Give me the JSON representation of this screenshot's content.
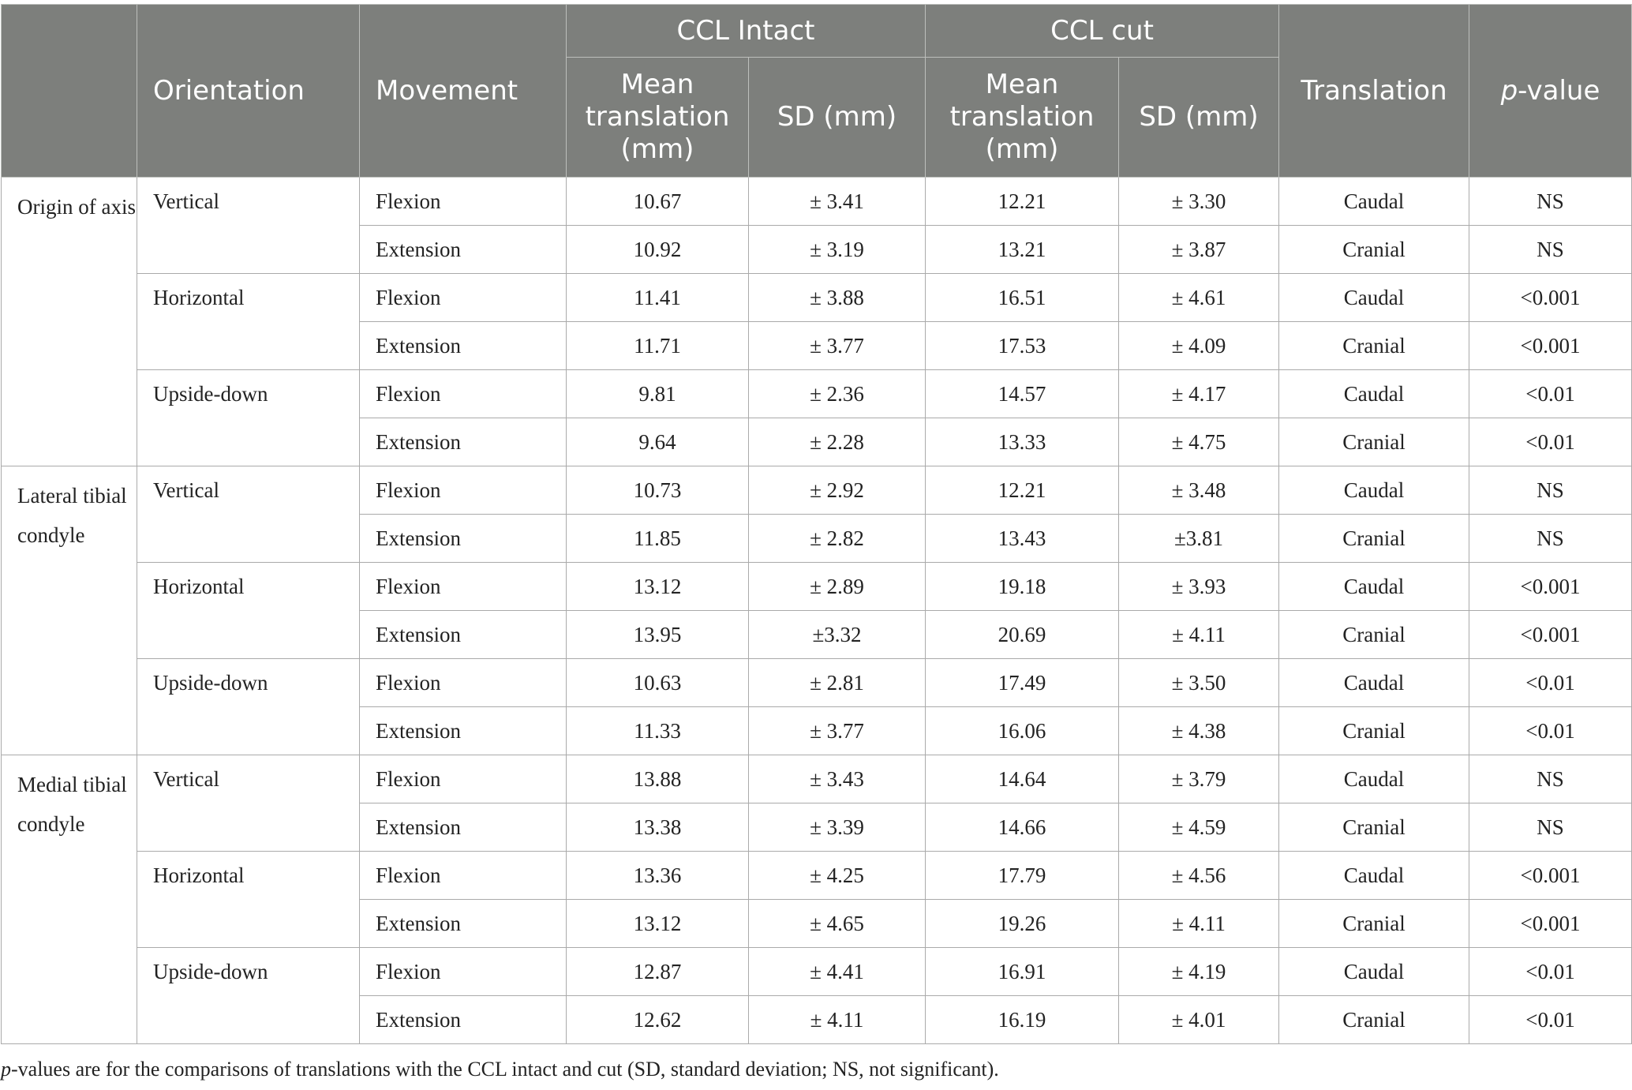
{
  "header": {
    "orientation": "Orientation",
    "movement": "Movement",
    "group_intact": "CCL Intact",
    "group_cut": "CCL cut",
    "mean_line1": "Mean",
    "mean_line2": "translation",
    "mean_line3": "(mm)",
    "sd": "SD (mm)",
    "translation": "Translation",
    "pvalue_italic": "p",
    "pvalue_rest": "-value"
  },
  "groups": [
    {
      "origin": "Origin of axis",
      "orientations": [
        {
          "name": "Vertical",
          "rows": [
            {
              "movement": "Flexion",
              "intact_mean": "10.67",
              "intact_sd": "± 3.41",
              "cut_mean": "12.21",
              "cut_sd": "± 3.30",
              "translation": "Caudal",
              "p": "NS"
            },
            {
              "movement": "Extension",
              "intact_mean": "10.92",
              "intact_sd": "± 3.19",
              "cut_mean": "13.21",
              "cut_sd": "± 3.87",
              "translation": "Cranial",
              "p": "NS"
            }
          ]
        },
        {
          "name": "Horizontal",
          "rows": [
            {
              "movement": "Flexion",
              "intact_mean": "11.41",
              "intact_sd": "± 3.88",
              "cut_mean": "16.51",
              "cut_sd": "± 4.61",
              "translation": "Caudal",
              "p": "<0.001"
            },
            {
              "movement": "Extension",
              "intact_mean": "11.71",
              "intact_sd": "± 3.77",
              "cut_mean": "17.53",
              "cut_sd": "± 4.09",
              "translation": "Cranial",
              "p": "<0.001"
            }
          ]
        },
        {
          "name": "Upside-down",
          "rows": [
            {
              "movement": "Flexion",
              "intact_mean": "9.81",
              "intact_sd": "± 2.36",
              "cut_mean": "14.57",
              "cut_sd": "± 4.17",
              "translation": "Caudal",
              "p": "<0.01"
            },
            {
              "movement": "Extension",
              "intact_mean": "9.64",
              "intact_sd": "± 2.28",
              "cut_mean": "13.33",
              "cut_sd": "± 4.75",
              "translation": "Cranial",
              "p": "<0.01"
            }
          ]
        }
      ]
    },
    {
      "origin": "Lateral tibial condyle",
      "orientations": [
        {
          "name": "Vertical",
          "rows": [
            {
              "movement": "Flexion",
              "intact_mean": "10.73",
              "intact_sd": "± 2.92",
              "cut_mean": "12.21",
              "cut_sd": "± 3.48",
              "translation": "Caudal",
              "p": "NS"
            },
            {
              "movement": "Extension",
              "intact_mean": "11.85",
              "intact_sd": "± 2.82",
              "cut_mean": "13.43",
              "cut_sd": "±3.81",
              "translation": "Cranial",
              "p": "NS"
            }
          ]
        },
        {
          "name": "Horizontal",
          "rows": [
            {
              "movement": "Flexion",
              "intact_mean": "13.12",
              "intact_sd": "± 2.89",
              "cut_mean": "19.18",
              "cut_sd": "± 3.93",
              "translation": "Caudal",
              "p": "<0.001"
            },
            {
              "movement": "Extension",
              "intact_mean": "13.95",
              "intact_sd": "±3.32",
              "cut_mean": "20.69",
              "cut_sd": "± 4.11",
              "translation": "Cranial",
              "p": "<0.001"
            }
          ]
        },
        {
          "name": "Upside-down",
          "rows": [
            {
              "movement": "Flexion",
              "intact_mean": "10.63",
              "intact_sd": "± 2.81",
              "cut_mean": "17.49",
              "cut_sd": "± 3.50",
              "translation": "Caudal",
              "p": "<0.01"
            },
            {
              "movement": "Extension",
              "intact_mean": "11.33",
              "intact_sd": "± 3.77",
              "cut_mean": "16.06",
              "cut_sd": "± 4.38",
              "translation": "Cranial",
              "p": "<0.01"
            }
          ]
        }
      ]
    },
    {
      "origin": "Medial tibial condyle",
      "orientations": [
        {
          "name": "Vertical",
          "rows": [
            {
              "movement": "Flexion",
              "intact_mean": "13.88",
              "intact_sd": "± 3.43",
              "cut_mean": "14.64",
              "cut_sd": "± 3.79",
              "translation": "Caudal",
              "p": "NS"
            },
            {
              "movement": "Extension",
              "intact_mean": "13.38",
              "intact_sd": "± 3.39",
              "cut_mean": "14.66",
              "cut_sd": "± 4.59",
              "translation": "Cranial",
              "p": "NS"
            }
          ]
        },
        {
          "name": "Horizontal",
          "rows": [
            {
              "movement": "Flexion",
              "intact_mean": "13.36",
              "intact_sd": "± 4.25",
              "cut_mean": "17.79",
              "cut_sd": "± 4.56",
              "translation": "Caudal",
              "p": "<0.001"
            },
            {
              "movement": "Extension",
              "intact_mean": "13.12",
              "intact_sd": "± 4.65",
              "cut_mean": "19.26",
              "cut_sd": "± 4.11",
              "translation": "Cranial",
              "p": "<0.001"
            }
          ]
        },
        {
          "name": "Upside-down",
          "rows": [
            {
              "movement": "Flexion",
              "intact_mean": "12.87",
              "intact_sd": "± 4.41",
              "cut_mean": "16.91",
              "cut_sd": "± 4.19",
              "translation": "Caudal",
              "p": "<0.01"
            },
            {
              "movement": "Extension",
              "intact_mean": "12.62",
              "intact_sd": "± 4.11",
              "cut_mean": "16.19",
              "cut_sd": "± 4.01",
              "translation": "Cranial",
              "p": "<0.01"
            }
          ]
        }
      ]
    }
  ],
  "footnote": {
    "italic": "p",
    "rest": "-values are for the comparisons of translations with the CCL intact and cut (SD, standard deviation; NS, not significant)."
  },
  "colors": {
    "header_bg": "#7d7f7c",
    "header_text": "#ffffff",
    "grid_line": "#aaaaaa"
  }
}
